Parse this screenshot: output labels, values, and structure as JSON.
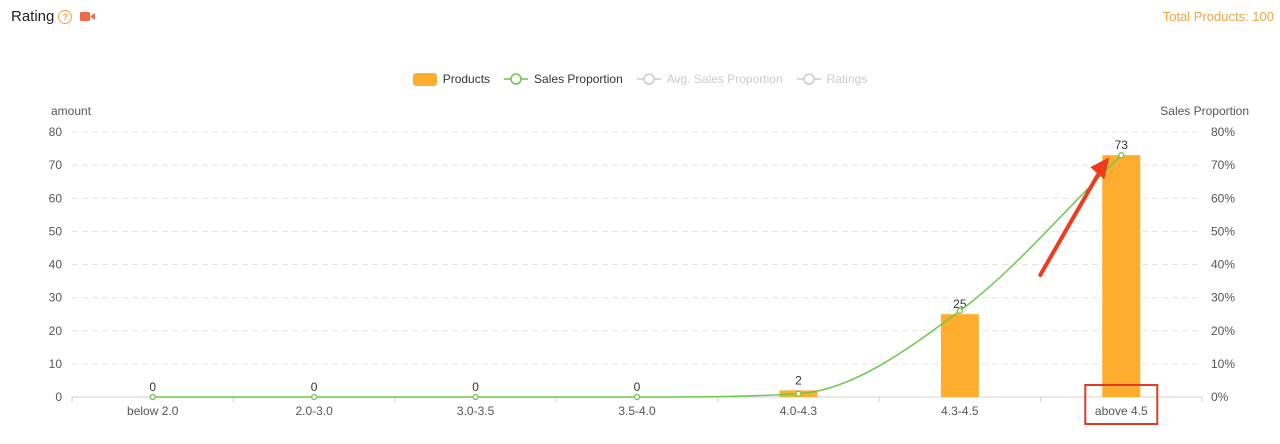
{
  "header": {
    "title": "Rating",
    "help_glyph": "?",
    "help_icon": "question-circle-icon",
    "video_icon": "video-camera-icon",
    "total_products": "Total Products: 100"
  },
  "legend": [
    {
      "label": "Products",
      "active": true
    },
    {
      "label": "Sales Proportion",
      "active": true
    },
    {
      "label": "Avg. Sales Proportion",
      "active": false
    },
    {
      "label": "Ratings",
      "active": false
    }
  ],
  "chart_data": {
    "type": "bar",
    "categories": [
      "below 2.0",
      "2.0-3.0",
      "3.0-3.5",
      "3.5-4.0",
      "4.0-4.3",
      "4.3-4.5",
      "above 4.5"
    ],
    "series": [
      {
        "name": "Products",
        "type": "bar",
        "axis": "left",
        "values": [
          0,
          0,
          0,
          0,
          2,
          25,
          73
        ],
        "data_labels": [
          "0",
          "0",
          "0",
          "0",
          "2",
          "25",
          "73"
        ]
      },
      {
        "name": "Sales Proportion",
        "type": "line",
        "axis": "right",
        "values": [
          0,
          0,
          0,
          0,
          1,
          26,
          73
        ]
      }
    ],
    "ylabel": "amount",
    "y2label": "Sales Proportion",
    "ylim": [
      0,
      80
    ],
    "yticks": [
      "0",
      "10",
      "20",
      "30",
      "40",
      "50",
      "60",
      "70",
      "80"
    ],
    "y2lim": [
      0,
      80
    ],
    "y2ticks": [
      "0%",
      "10%",
      "20%",
      "30%",
      "40%",
      "50%",
      "60%",
      "70%",
      "80%"
    ],
    "grid": true,
    "legend_position": "top-center",
    "colors": {
      "bar": "#FFAD2E",
      "line": "#6CC84A",
      "inactive": "#cccccc",
      "arrow": "#F03A1C",
      "highlight_box": "#E03A2A",
      "accent": "#f0a340"
    },
    "annotations": [
      {
        "type": "arrow",
        "target": "above 4.5"
      },
      {
        "type": "highlight-box",
        "target": "above 4.5"
      }
    ]
  }
}
